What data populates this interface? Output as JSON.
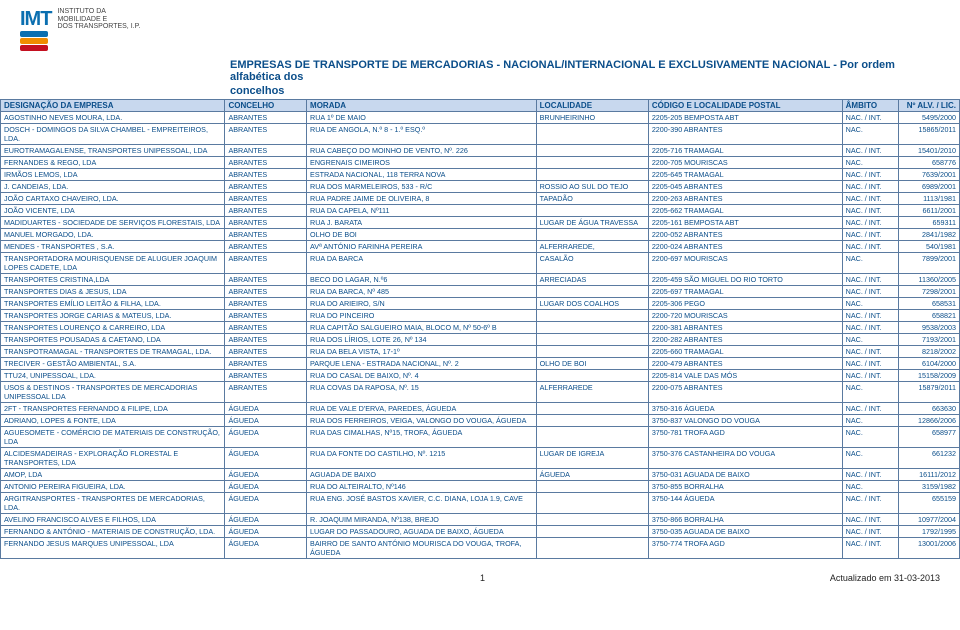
{
  "logo": {
    "acronym": "IMT",
    "line1": "INSTITUTO DA",
    "line2": "MOBILIDADE E",
    "line3": "DOS TRANSPORTES, I.P.",
    "bar_colors": [
      "#0b6fb0",
      "#f08c00",
      "#c41020"
    ]
  },
  "title_line1": "EMPRESAS DE TRANSPORTE DE MERCADORIAS - NACIONAL/INTERNACIONAL E EXCLUSIVAMENTE NACIONAL - Por ordem alfabética dos",
  "title_line2": "concelhos",
  "columns": [
    "DESIGNAÇÃO DA EMPRESA",
    "CONCELHO",
    "MORADA",
    "LOCALIDADE",
    "CÓDIGO E LOCALIDADE POSTAL",
    "ÂMBITO",
    "Nº ALV. / LIC."
  ],
  "rows": [
    [
      "AGOSTINHO NEVES MOURA, LDA.",
      "ABRANTES",
      "RUA 1º DE MAIO",
      "BRUNHEIRINHO",
      "2205-205 BEMPOSTA ABT",
      "NAC. / INT.",
      "5495/2000"
    ],
    [
      "DOSCH - DOMINGOS DA SILVA CHAMBEL - EMPREITEIROS, LDA.",
      "ABRANTES",
      "RUA DE ANGOLA, N.º 8 - 1.º ESQ.º",
      "",
      "2200-390 ABRANTES",
      "NAC.",
      "15865/2011"
    ],
    [
      "EUROTRAMAGALENSE, TRANSPORTES UNIPESSOAL, LDA",
      "ABRANTES",
      "RUA CABEÇO DO MOINHO DE VENTO, Nº. 226",
      "",
      "2205-716 TRAMAGAL",
      "NAC. / INT.",
      "15401/2010"
    ],
    [
      "FERNANDES & REGO, LDA",
      "ABRANTES",
      "ENGRENAIS CIMEIROS",
      "",
      "2200-705 MOURISCAS",
      "NAC.",
      "658776"
    ],
    [
      "IRMÃOS LEMOS, LDA",
      "ABRANTES",
      "ESTRADA NACIONAL, 118 TERRA NOVA",
      "",
      "2205-645 TRAMAGAL",
      "NAC. / INT.",
      "7639/2001"
    ],
    [
      "J. CANDEIAS, LDA.",
      "ABRANTES",
      "RUA DOS MARMELEIROS, 533 - R/C",
      "ROSSIO AO SUL DO TEJO",
      "2205-045 ABRANTES",
      "NAC. / INT.",
      "6989/2001"
    ],
    [
      "JOÃO CARTAXO CHAVEIRO, LDA.",
      "ABRANTES",
      "RUA PADRE JAIME DE OLIVEIRA, 8",
      "TAPADÃO",
      "2200-263 ABRANTES",
      "NAC. / INT.",
      "1113/1981"
    ],
    [
      "JOÃO VICENTE, LDA",
      "ABRANTES",
      "RUA DA CAPELA, Nº111",
      "",
      "2205-662 TRAMAGAL",
      "NAC. / INT.",
      "6611/2001"
    ],
    [
      "MADIDUARTES - SOCIEDADE DE SERVIÇOS FLORESTAIS, LDA",
      "ABRANTES",
      "RUA J. BARATA",
      "LUGAR DE ÁGUA TRAVESSA",
      "2205-161 BEMPOSTA ABT",
      "NAC. / INT.",
      "659311"
    ],
    [
      "MANUEL MORGADO, LDA.",
      "ABRANTES",
      "OLHO DE BOI",
      "",
      "2200-052 ABRANTES",
      "NAC. / INT.",
      "2841/1982"
    ],
    [
      "MENDES - TRANSPORTES , S.A.",
      "ABRANTES",
      "AVª ANTÓNIO FARINHA PEREIRA",
      "ALFERRAREDE,",
      "2200-024 ABRANTES",
      "NAC. / INT.",
      "540/1981"
    ],
    [
      "TRANSPORTADORA MOURISQUENSE DE ALUGUER JOAQUIM LOPES CADETE, LDA",
      "ABRANTES",
      "RUA DA BARCA",
      "CASALÃO",
      "2200-697 MOURISCAS",
      "NAC.",
      "7899/2001"
    ],
    [
      "TRANSPORTES CRISTINA,LDA",
      "ABRANTES",
      "BECO DO LAGAR, N.º6",
      "ARRECIADAS",
      "2205-459 SÃO MIGUEL DO RIO TORTO",
      "NAC. / INT.",
      "11360/2005"
    ],
    [
      "TRANSPORTES DIAS & JESUS, LDA",
      "ABRANTES",
      "RUA DA BARCA, Nº 485",
      "",
      "2205-697 TRAMAGAL",
      "NAC. / INT.",
      "7298/2001"
    ],
    [
      "TRANSPORTES EMÍLIO LEITÃO & FILHA, LDA.",
      "ABRANTES",
      "RUA DO ARIEIRO, S/N",
      "LUGAR DOS COALHOS",
      "2205-306 PEGO",
      "NAC.",
      "658531"
    ],
    [
      "TRANSPORTES JORGE CARIAS & MATEUS, LDA.",
      "ABRANTES",
      "RUA DO PINCEIRO",
      "",
      "2200-720 MOURISCAS",
      "NAC. / INT.",
      "658821"
    ],
    [
      "TRANSPORTES LOURENÇO & CARREIRO, LDA",
      "ABRANTES",
      "RUA CAPITÃO SALGUEIRO MAIA, BLOCO M, Nº 50-6º B",
      "",
      "2200-381 ABRANTES",
      "NAC. / INT.",
      "9538/2003"
    ],
    [
      "TRANSPORTES POUSADAS & CAETANO, LDA",
      "ABRANTES",
      "RUA DOS LÍRIOS, LOTE 26, Nº 134",
      "",
      "2200-282 ABRANTES",
      "NAC.",
      "7193/2001"
    ],
    [
      "TRANSPOTRAMAGAL - TRANSPORTES DE TRAMAGAL, LDA.",
      "ABRANTES",
      "RUA DA BELA VISTA, 17-1º",
      "",
      "2205-660 TRAMAGAL",
      "NAC. / INT.",
      "8218/2002"
    ],
    [
      "TRECIVER - GESTÃO AMBIENTAL, S.A.",
      "ABRANTES",
      "PARQUE LENA - ESTRADA NACIONAL, Nº. 2",
      "OLHO DE BOI",
      "2200-479 ABRANTES",
      "NAC. / INT.",
      "6104/2000"
    ],
    [
      "TTU24, UNIPESSOAL, LDA.",
      "ABRANTES",
      "RUA DO CASAL DE BAIXO, Nº. 4",
      "",
      "2205-814 VALE DAS MÓS",
      "NAC. / INT.",
      "15158/2009"
    ],
    [
      "USOS & DESTINOS - TRANSPORTES DE MERCADORIAS UNIPESSOAL LDA",
      "ABRANTES",
      "RUA COVAS DA RAPOSA, Nº. 15",
      "ALFERRAREDE",
      "2200-075 ABRANTES",
      "NAC.",
      "15879/2011"
    ],
    [
      "2FT - TRANSPORTES FERNANDO & FILIPE, LDA",
      "ÁGUEDA",
      "RUA DE VALE D'ERVA, PAREDES, ÁGUEDA",
      "",
      "3750-316 ÁGUEDA",
      "NAC. / INT.",
      "663630"
    ],
    [
      "ADRIANO, LOPES & FONTE, LDA",
      "ÁGUEDA",
      "RUA DOS FERREIROS, VEIGA, VALONGO DO VOUGA, ÁGUEDA",
      "",
      "3750-837 VALONGO DO VOUGA",
      "NAC.",
      "12866/2006"
    ],
    [
      "AGUESOMETE - COMÉRCIO DE MATERIAIS DE CONSTRUÇÃO, LDA",
      "ÁGUEDA",
      "RUA DAS CIMALHAS, Nº15, TROFA, ÁGUEDA",
      "",
      "3750-781 TROFA AGD",
      "NAC.",
      "658977"
    ],
    [
      "ALCIDESMADEIRAS - EXPLORAÇÃO FLORESTAL E TRANSPORTES, LDA",
      "ÁGUEDA",
      "RUA DA FONTE DO CASTILHO, Nº. 1215",
      "LUGAR DE IGREJA",
      "3750-376 CASTANHEIRA DO VOUGA",
      "NAC.",
      "661232"
    ],
    [
      "AMOP, LDA",
      "ÁGUEDA",
      "AGUADA DE BAIXO",
      "ÁGUEDA",
      "3750-031 AGUADA DE BAIXO",
      "NAC. / INT.",
      "16111/2012"
    ],
    [
      "ANTONIO PEREIRA FIGUEIRA, LDA.",
      "ÁGUEDA",
      "RUA DO ALTEIRALTO, Nº146",
      "",
      "3750-855 BORRALHA",
      "NAC.",
      "3159/1982"
    ],
    [
      "ARGITRANSPORTES - TRANSPORTES DE MERCADORIAS, LDA.",
      "ÁGUEDA",
      "RUA ENG. JOSÉ BASTOS XAVIER, C.C. DIANA, LOJA 1.9, CAVE",
      "",
      "3750-144 ÁGUEDA",
      "NAC. / INT.",
      "655159"
    ],
    [
      "AVELINO FRANCISCO ALVES E FILHOS, LDA",
      "ÁGUEDA",
      "R. JOAQUIM MIRANDA, Nº138, BREJO",
      "",
      "3750-866 BORRALHA",
      "NAC. / INT.",
      "10977/2004"
    ],
    [
      "FERNANDO & ANTÓNIO - MATERIAIS DE CONSTRUÇÃO, LDA.",
      "ÁGUEDA",
      "LUGAR DO PASSADOURO, AGUADA DE BAIXO, ÁGUEDA",
      "",
      "3750-035 AGUADA DE BAIXO",
      "NAC. / INT.",
      "1792/1995"
    ],
    [
      "FERNANDO JESUS MARQUES UNIPESSOAL, LDA",
      "ÁGUEDA",
      "BAIRRO DE SANTO ANTÓNIO MOURISCA DO VOUGA, TROFA, ÁGUEDA",
      "",
      "3750-774 TROFA AGD",
      "NAC. / INT.",
      "13001/2006"
    ]
  ],
  "footer": {
    "page": "1",
    "updated": "Actualizado em 31-03-2013"
  },
  "colors": {
    "header_bg": "#c8d8ee",
    "text": "#0b4e8a"
  }
}
